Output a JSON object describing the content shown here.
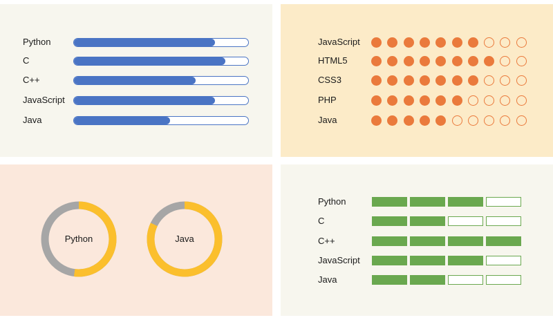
{
  "colors": {
    "panel_bars_bg": "#f7f6ee",
    "panel_dots_bg": "#fcebc8",
    "panel_donuts_bg": "#fbe8dc",
    "panel_segments_bg": "#f7f6ee",
    "bar_blue": "#4a74c4",
    "dot_orange": "#ea7a3c",
    "donut_yellow": "#fbbf2d",
    "donut_gray": "#a6a6a6",
    "segment_green": "#6aa84f"
  },
  "bars_panel": {
    "items": [
      {
        "label": "Python",
        "level": 0.81
      },
      {
        "label": "C",
        "level": 0.87
      },
      {
        "label": "C++",
        "level": 0.7
      },
      {
        "label": "JavaScript",
        "level": 0.81
      },
      {
        "label": "Java",
        "level": 0.55
      }
    ]
  },
  "dots_panel": {
    "max": 10,
    "items": [
      {
        "label": "JavaScript",
        "filled": 7
      },
      {
        "label": "HTML5",
        "filled": 8
      },
      {
        "label": "CSS3",
        "filled": 7
      },
      {
        "label": "PHP",
        "filled": 6
      },
      {
        "label": "Java",
        "filled": 5
      }
    ]
  },
  "donuts_panel": {
    "items": [
      {
        "label": "Python",
        "level": 0.52
      },
      {
        "label": "Java",
        "level": 0.82
      }
    ]
  },
  "segments_panel": {
    "max": 4,
    "items": [
      {
        "label": "Python",
        "filled": 3
      },
      {
        "label": "C",
        "filled": 2
      },
      {
        "label": "C++",
        "filled": 4
      },
      {
        "label": "JavaScript",
        "filled": 3
      },
      {
        "label": "Java",
        "filled": 2
      }
    ]
  }
}
